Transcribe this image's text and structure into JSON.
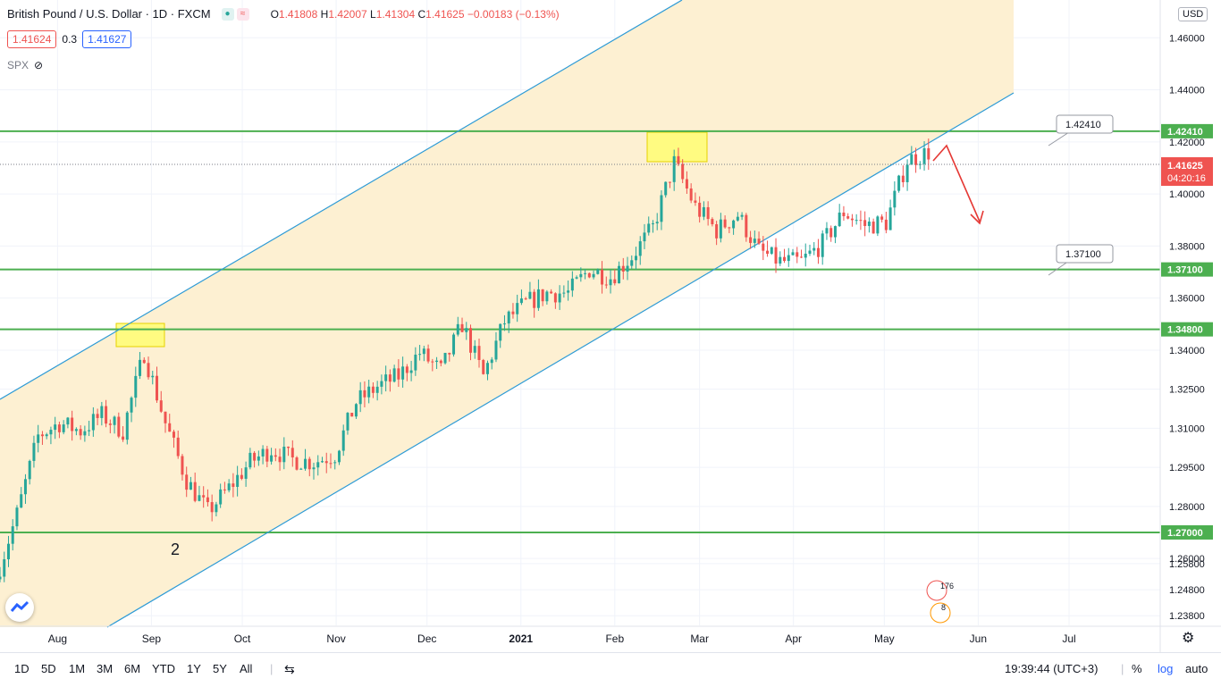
{
  "header": {
    "symbol": "British Pound / U.S. Dollar · 1D · FXCM",
    "open_label": "O",
    "open": "1.41808",
    "high_label": "H",
    "high": "1.42007",
    "low_label": "L",
    "low": "1.41304",
    "close_label": "C",
    "close": "1.41625",
    "change": "−0.00183 (−0.13%)",
    "bid": "1.41624",
    "spread": "0.3",
    "ask": "1.41627",
    "compare_symbol": "SPX"
  },
  "currency_button": "USD",
  "colors": {
    "up": "#26a69a",
    "down": "#ef5350",
    "channel_fill": "#fdf0d2",
    "channel_line": "#2e9bd6",
    "level_line": "#4caf50",
    "highlight": "#ffff66",
    "arrow": "#e53935"
  },
  "chart_data": {
    "type": "candlestick",
    "symbol": "GBPUSD",
    "ylim": [
      1.2343,
      1.4745
    ],
    "x_ticks": [
      "Aug",
      "Sep",
      "Oct",
      "Nov",
      "Dec",
      "2021",
      "Feb",
      "Mar",
      "Apr",
      "May",
      "Jun",
      "Jul"
    ],
    "y_ticks": [
      "1.46000",
      "1.44000",
      "1.42000",
      "1.40000",
      "1.38000",
      "1.36000",
      "1.34000",
      "1.32500",
      "1.31000",
      "1.29500",
      "1.28000",
      "1.26000",
      "1.25800",
      "1.24800",
      "1.23800"
    ],
    "horizontal_levels": [
      "1.42410",
      "1.37100",
      "1.34800",
      "1.27000"
    ],
    "level_callouts": [
      "1.42410",
      "1.37100"
    ],
    "current_price": "1.41625",
    "countdown": "04:20:16",
    "wave_label": "2",
    "price_path": [
      {
        "date": "2020-07-13",
        "close": 1.252
      },
      {
        "date": "2020-07-20",
        "close": 1.277
      },
      {
        "date": "2020-07-27",
        "close": 1.307
      },
      {
        "date": "2020-08-03",
        "close": 1.312
      },
      {
        "date": "2020-08-10",
        "close": 1.309
      },
      {
        "date": "2020-08-17",
        "close": 1.315
      },
      {
        "date": "2020-08-24",
        "close": 1.309
      },
      {
        "date": "2020-08-31",
        "close": 1.339
      },
      {
        "date": "2020-09-07",
        "close": 1.312
      },
      {
        "date": "2020-09-14",
        "close": 1.29
      },
      {
        "date": "2020-09-21",
        "close": 1.278
      },
      {
        "date": "2020-09-28",
        "close": 1.287
      },
      {
        "date": "2020-10-05",
        "close": 1.297
      },
      {
        "date": "2020-10-12",
        "close": 1.302
      },
      {
        "date": "2020-10-19",
        "close": 1.298
      },
      {
        "date": "2020-10-26",
        "close": 1.297
      },
      {
        "date": "2020-11-02",
        "close": 1.3
      },
      {
        "date": "2020-11-09",
        "close": 1.32
      },
      {
        "date": "2020-11-16",
        "close": 1.326
      },
      {
        "date": "2020-11-23",
        "close": 1.33
      },
      {
        "date": "2020-11-30",
        "close": 1.339
      },
      {
        "date": "2020-12-07",
        "close": 1.332
      },
      {
        "date": "2020-12-14",
        "close": 1.35
      },
      {
        "date": "2020-12-21",
        "close": 1.33
      },
      {
        "date": "2020-12-28",
        "close": 1.351
      },
      {
        "date": "2021-01-04",
        "close": 1.358
      },
      {
        "date": "2021-01-11",
        "close": 1.362
      },
      {
        "date": "2021-01-18",
        "close": 1.362
      },
      {
        "date": "2021-01-25",
        "close": 1.371
      },
      {
        "date": "2021-02-01",
        "close": 1.368
      },
      {
        "date": "2021-02-08",
        "close": 1.376
      },
      {
        "date": "2021-02-15",
        "close": 1.387
      },
      {
        "date": "2021-02-22",
        "close": 1.412
      },
      {
        "date": "2021-03-01",
        "close": 1.395
      },
      {
        "date": "2021-03-08",
        "close": 1.386
      },
      {
        "date": "2021-03-15",
        "close": 1.392
      },
      {
        "date": "2021-03-22",
        "close": 1.378
      },
      {
        "date": "2021-03-29",
        "close": 1.374
      },
      {
        "date": "2021-04-05",
        "close": 1.374
      },
      {
        "date": "2021-04-12",
        "close": 1.381
      },
      {
        "date": "2021-04-19",
        "close": 1.393
      },
      {
        "date": "2021-04-26",
        "close": 1.388
      },
      {
        "date": "2021-05-03",
        "close": 1.389
      },
      {
        "date": "2021-05-10",
        "close": 1.413
      },
      {
        "date": "2021-05-17",
        "close": 1.416
      }
    ]
  },
  "bottom": {
    "timeframes": [
      "1D",
      "5D",
      "1M",
      "3M",
      "6M",
      "YTD",
      "1Y",
      "5Y",
      "All"
    ],
    "clock": "19:39:44 (UTC+3)",
    "percent": "%",
    "log": "log",
    "auto": "auto"
  }
}
